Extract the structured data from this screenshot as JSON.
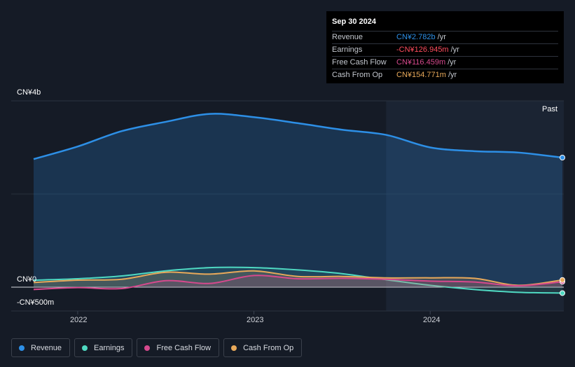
{
  "tooltip": {
    "date": "Sep 30 2024",
    "rows": [
      {
        "label": "Revenue",
        "value": "CN¥2.782b",
        "unit": "/yr",
        "color": "#2d8fe6"
      },
      {
        "label": "Earnings",
        "value": "-CN¥126.945m",
        "unit": "/yr",
        "color": "#ff4d5e"
      },
      {
        "label": "Free Cash Flow",
        "value": "CN¥116.459m",
        "unit": "/yr",
        "color": "#d6498d"
      },
      {
        "label": "Cash From Op",
        "value": "CN¥154.771m",
        "unit": "/yr",
        "color": "#e8a95a"
      }
    ]
  },
  "past_label": "Past",
  "legend": [
    {
      "label": "Revenue",
      "color": "#2d8fe6"
    },
    {
      "label": "Earnings",
      "color": "#4fd9c2"
    },
    {
      "label": "Free Cash Flow",
      "color": "#d6498d"
    },
    {
      "label": "Cash From Op",
      "color": "#e8a95a"
    }
  ],
  "chart_data": {
    "type": "line",
    "ytick_labels": [
      "CN¥4b",
      "CN¥0",
      "-CN¥500m"
    ],
    "yticks": [
      4000,
      0,
      -500
    ],
    "ylim": [
      -500,
      4000
    ],
    "xlim": [
      2021.75,
      2024.75
    ],
    "xtick_labels": [
      "2022",
      "2023",
      "2024"
    ],
    "xticks": [
      2022,
      2023,
      2024
    ],
    "past_start": 2023.75,
    "grid": true,
    "series": [
      {
        "name": "Revenue",
        "color": "#2d8fe6",
        "x": [
          2021.75,
          2022.0,
          2022.25,
          2022.5,
          2022.75,
          2023.0,
          2023.25,
          2023.5,
          2023.75,
          2024.0,
          2024.25,
          2024.5,
          2024.75
        ],
        "y": [
          2750,
          3020,
          3350,
          3550,
          3720,
          3650,
          3520,
          3380,
          3270,
          3000,
          2920,
          2890,
          2782
        ]
      },
      {
        "name": "Earnings",
        "color": "#4fd9c2",
        "x": [
          2021.75,
          2022.0,
          2022.25,
          2022.5,
          2022.75,
          2023.0,
          2023.25,
          2023.5,
          2023.75,
          2024.0,
          2024.25,
          2024.5,
          2024.75
        ],
        "y": [
          150,
          180,
          240,
          350,
          420,
          420,
          370,
          290,
          160,
          40,
          -50,
          -110,
          -127
        ]
      },
      {
        "name": "Free Cash Flow",
        "color": "#d6498d",
        "x": [
          2021.75,
          2022.0,
          2022.25,
          2022.5,
          2022.75,
          2023.0,
          2023.25,
          2023.5,
          2023.75,
          2024.0,
          2024.25,
          2024.5,
          2024.75
        ],
        "y": [
          -50,
          -10,
          -30,
          140,
          80,
          250,
          180,
          190,
          170,
          130,
          110,
          30,
          116
        ]
      },
      {
        "name": "Cash From Op",
        "color": "#e8a95a",
        "x": [
          2021.75,
          2022.0,
          2022.25,
          2022.5,
          2022.75,
          2023.0,
          2023.25,
          2023.5,
          2023.75,
          2024.0,
          2024.25,
          2024.5,
          2024.75
        ],
        "y": [
          100,
          150,
          170,
          320,
          280,
          350,
          230,
          230,
          200,
          200,
          190,
          40,
          155
        ]
      }
    ]
  }
}
